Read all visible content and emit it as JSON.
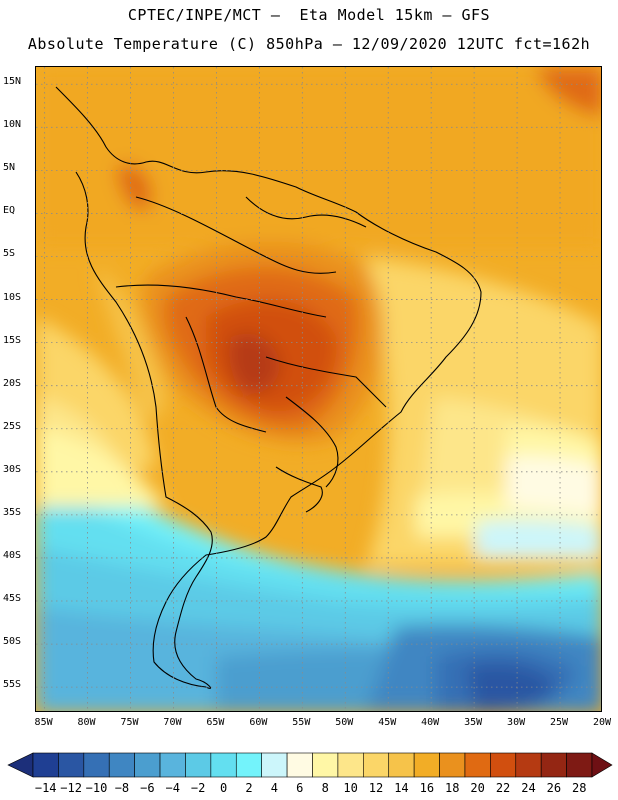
{
  "header": {
    "title_line1": "CPTEC/INPE/MCT –  Eta Model 15km – GFS",
    "title_line2": "Absolute Temperature (C) 850hPa – 12/09/2020 12UTC fct=162h"
  },
  "axes": {
    "lat_labels": [
      "15N",
      "10N",
      "5N",
      "EQ",
      "5S",
      "10S",
      "15S",
      "20S",
      "25S",
      "30S",
      "35S",
      "40S",
      "45S",
      "50S",
      "55S"
    ],
    "lat_values": [
      15,
      10,
      5,
      0,
      -5,
      -10,
      -15,
      -20,
      -25,
      -30,
      -35,
      -40,
      -45,
      -50,
      -55
    ],
    "lon_labels": [
      "85W",
      "80W",
      "75W",
      "70W",
      "65W",
      "60W",
      "55W",
      "50W",
      "45W",
      "40W",
      "35W",
      "30W",
      "25W",
      "20W"
    ],
    "lon_values": [
      -85,
      -80,
      -75,
      -70,
      -65,
      -60,
      -55,
      -50,
      -45,
      -40,
      -35,
      -30,
      -25,
      -20
    ],
    "lat_range": [
      -58,
      17
    ],
    "lon_range": [
      -86,
      -20
    ]
  },
  "colorbar": {
    "labels": [
      "-14",
      "-12",
      "-10",
      "-8",
      "-6",
      "-4",
      "-2",
      "0",
      "2",
      "4",
      "6",
      "8",
      "10",
      "12",
      "14",
      "16",
      "18",
      "20",
      "22",
      "24",
      "26",
      "28"
    ],
    "colors": [
      "#1f3f93",
      "#2a56a3",
      "#3570b5",
      "#3f86c2",
      "#4b9ecf",
      "#59b4dd",
      "#5ccae6",
      "#63dff0",
      "#73f3fb",
      "#ccf6fb",
      "#fffbe3",
      "#fff7a6",
      "#fde68a",
      "#fbd668",
      "#f6c34a",
      "#f2ad26",
      "#ea911e",
      "#e06a12",
      "#d14f0f",
      "#b53a12",
      "#942613",
      "#7e1a14"
    ],
    "left_arrow_color": "#1c2f7a",
    "right_arrow_color": "#6e1014"
  }
}
